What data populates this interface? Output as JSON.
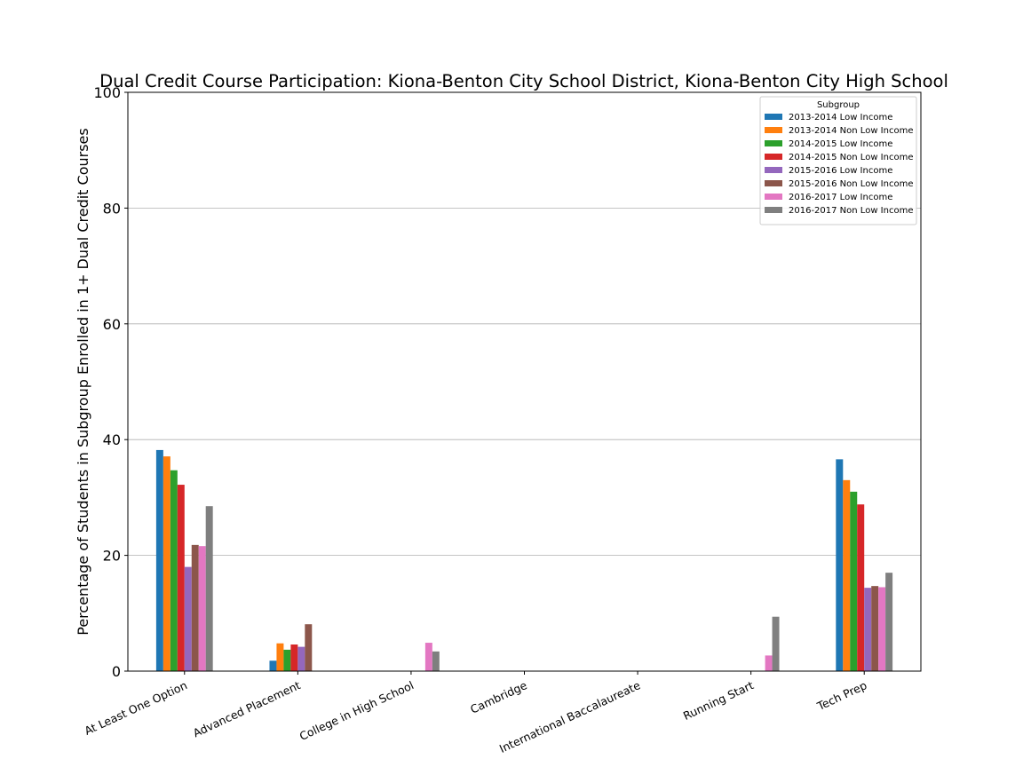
{
  "chart_data": {
    "type": "bar",
    "title": "Dual Credit Course Participation: Kiona-Benton City School District, Kiona-Benton City High School",
    "xlabel": "",
    "ylabel": "Percentage of Students in Subgroup Enrolled in 1+ Dual Credit Courses",
    "ylim": [
      0,
      100
    ],
    "yticks": [
      0,
      20,
      40,
      60,
      80,
      100
    ],
    "grid": "horizontal",
    "legend_title": "Subgroup",
    "legend_position": "top-right",
    "categories": [
      "At Least One Option",
      "Advanced Placement",
      "College in High School",
      "Cambridge",
      "International Baccalaureate",
      "Running Start",
      "Tech Prep"
    ],
    "series": [
      {
        "name": "2013-2014 Low Income",
        "color": "#1f77b4",
        "values": [
          38.2,
          1.8,
          0,
          0,
          0,
          0,
          36.6
        ]
      },
      {
        "name": "2013-2014 Non Low Income",
        "color": "#ff7f0e",
        "values": [
          37.1,
          4.8,
          0,
          0,
          0,
          0,
          33.0
        ]
      },
      {
        "name": "2014-2015 Low Income",
        "color": "#2ca02c",
        "values": [
          34.7,
          3.7,
          0,
          0,
          0,
          0,
          31.0
        ]
      },
      {
        "name": "2014-2015 Non Low Income",
        "color": "#d62728",
        "values": [
          32.2,
          4.6,
          0,
          0,
          0,
          0,
          28.8
        ]
      },
      {
        "name": "2015-2016 Low Income",
        "color": "#9467bd",
        "values": [
          18.0,
          4.2,
          0,
          0,
          0,
          0,
          14.4
        ]
      },
      {
        "name": "2015-2016 Non Low Income",
        "color": "#8c564b",
        "values": [
          21.8,
          8.1,
          0,
          0,
          0,
          0,
          14.7
        ]
      },
      {
        "name": "2016-2017 Low Income",
        "color": "#e377c2",
        "values": [
          21.6,
          0,
          4.9,
          0,
          0,
          2.7,
          14.5
        ]
      },
      {
        "name": "2016-2017 Non Low Income",
        "color": "#7f7f7f",
        "values": [
          28.5,
          0,
          3.4,
          0,
          0,
          9.4,
          17.0
        ]
      }
    ]
  }
}
